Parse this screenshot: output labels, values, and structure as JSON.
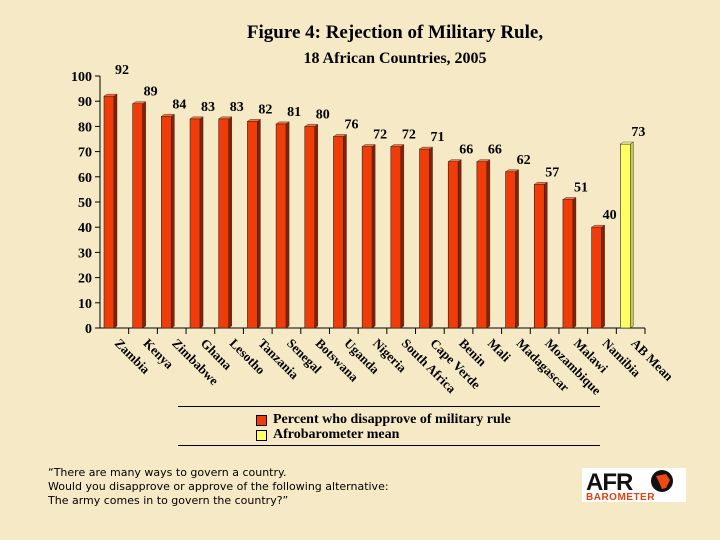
{
  "chart_data": {
    "type": "bar",
    "title": "Figure 4:  Rejection of Military Rule,",
    "subtitle": "18 African Countries, 2005",
    "categories": [
      "Zambia",
      "Kenya",
      "Zimbabwe",
      "Ghana",
      "Lesotho",
      "Tanzania",
      "Senegal",
      "Botswana",
      "Uganda",
      "Nigeria",
      "South Africa",
      "Cape Verde",
      "Benin",
      "Mali",
      "Madagascar",
      "Mozambique",
      "Malawi",
      "Namibia",
      "AB Mean"
    ],
    "series": [
      {
        "name": "Percent who disapprove of military rule",
        "values": [
          92,
          89,
          84,
          83,
          83,
          82,
          81,
          80,
          76,
          72,
          72,
          71,
          66,
          66,
          62,
          57,
          51,
          40,
          null
        ],
        "color": "#f03c08"
      },
      {
        "name": "Afrobarometer mean",
        "values": [
          null,
          null,
          null,
          null,
          null,
          null,
          null,
          null,
          null,
          null,
          null,
          null,
          null,
          null,
          null,
          null,
          null,
          null,
          73
        ],
        "color": "#ffff66"
      }
    ],
    "ylim": [
      0,
      100
    ],
    "yticks": [
      0,
      10,
      20,
      30,
      40,
      50,
      60,
      70,
      80,
      90,
      100
    ],
    "grid": false,
    "legend": "bottom"
  },
  "footer": {
    "lines": [
      "“There are many ways to govern a country.",
      "Would you disapprove or approve of the following alternative:",
      "The army comes in to govern the country?”"
    ]
  },
  "logo": {
    "text": "AFRO BAROMETER"
  }
}
